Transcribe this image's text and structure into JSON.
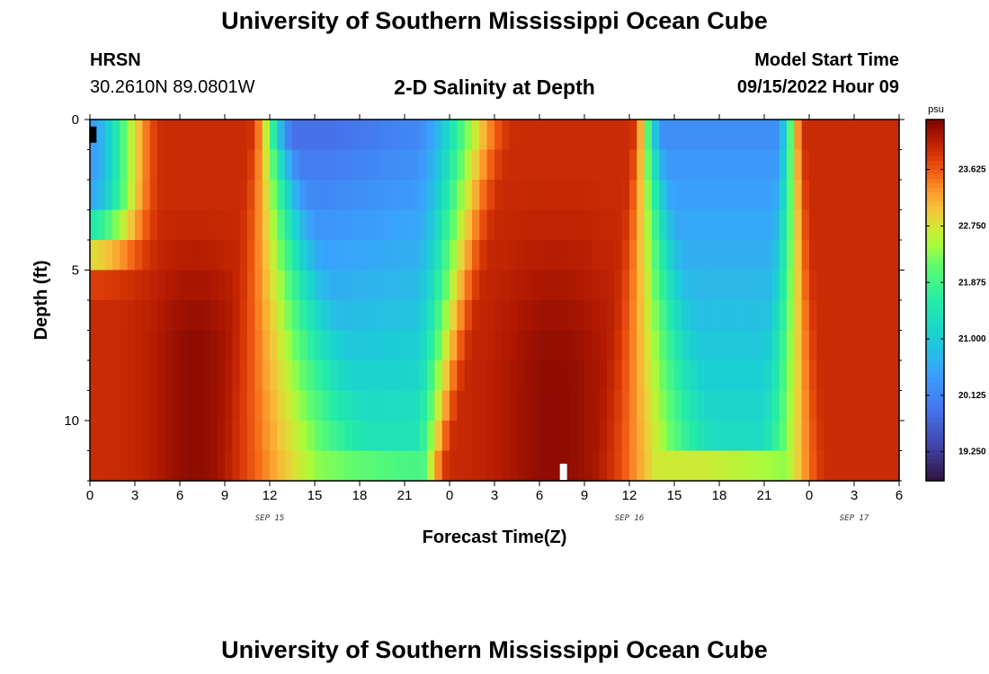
{
  "header": {
    "title": "University of Southern Mississippi Ocean Cube",
    "station": "HRSN",
    "coordinates": "30.2610N  89.0801W",
    "chart_title": "2-D Salinity at Depth",
    "model_start_label": "Model Start Time",
    "model_start_time": "09/15/2022 Hour 09"
  },
  "footer": {
    "title": "University of Southern Mississippi Ocean Cube"
  },
  "chart_data": {
    "type": "heatmap",
    "title": "2-D Salinity at Depth",
    "xlabel": "Forecast Time(Z)",
    "ylabel": "Depth (ft)",
    "x_start_hour": 0,
    "x_end_hour": 54,
    "x_ticks": [
      {
        "hour": 0,
        "label": "0"
      },
      {
        "hour": 3,
        "label": "3"
      },
      {
        "hour": 6,
        "label": "6"
      },
      {
        "hour": 9,
        "label": "9"
      },
      {
        "hour": 12,
        "label": "12"
      },
      {
        "hour": 15,
        "label": "15"
      },
      {
        "hour": 18,
        "label": "18"
      },
      {
        "hour": 21,
        "label": "21"
      },
      {
        "hour": 24,
        "label": "0"
      },
      {
        "hour": 27,
        "label": "3"
      },
      {
        "hour": 30,
        "label": "6"
      },
      {
        "hour": 33,
        "label": "9"
      },
      {
        "hour": 36,
        "label": "12"
      },
      {
        "hour": 39,
        "label": "15"
      },
      {
        "hour": 42,
        "label": "18"
      },
      {
        "hour": 45,
        "label": "21"
      },
      {
        "hour": 48,
        "label": "0"
      },
      {
        "hour": 51,
        "label": "3"
      },
      {
        "hour": 54,
        "label": "6"
      }
    ],
    "date_labels": [
      {
        "hour": 12,
        "label": "SEP 15"
      },
      {
        "hour": 36,
        "label": "SEP 16"
      },
      {
        "hour": 51,
        "label": "SEP 17"
      }
    ],
    "ylim": [
      0,
      12
    ],
    "y_ticks": [
      {
        "depth": 0,
        "label": "0"
      },
      {
        "depth": 5,
        "label": "5"
      },
      {
        "depth": 10,
        "label": "10"
      }
    ],
    "depth_levels": 12,
    "colorbar": {
      "unit": "psu",
      "min": 18.8,
      "max": 24.4,
      "ticks": [
        19.25,
        20.125,
        21.0,
        21.875,
        22.75,
        23.625
      ],
      "tick_labels": [
        "19.250",
        "20.125",
        "21.000",
        "21.875",
        "22.750",
        "23.625"
      ]
    },
    "salinity_model": {
      "description": "Salinity (psu) vs forecast hour, per depth layer; columns at 0.5 hour resolution",
      "fresh_periods": [
        {
          "start_hour": 12.5,
          "end_hour": 26,
          "surface_value": 19.8,
          "deep_value": 21.6
        },
        {
          "start_hour": 37.5,
          "end_hour": 47,
          "surface_value": 20.2,
          "deep_value": 21.4
        }
      ],
      "salty_peaks": [
        {
          "hour": 7,
          "value": 24.2
        },
        {
          "hour": 31,
          "value": 24.3
        },
        {
          "hour": 54,
          "value": 24.0
        }
      ]
    },
    "annotations": [
      {
        "type": "marker",
        "hour": 0.2,
        "depth": 0.5,
        "color": "#000000"
      },
      {
        "type": "marker",
        "hour": 31.6,
        "depth": 11.7,
        "color": "#ffffff"
      }
    ]
  }
}
